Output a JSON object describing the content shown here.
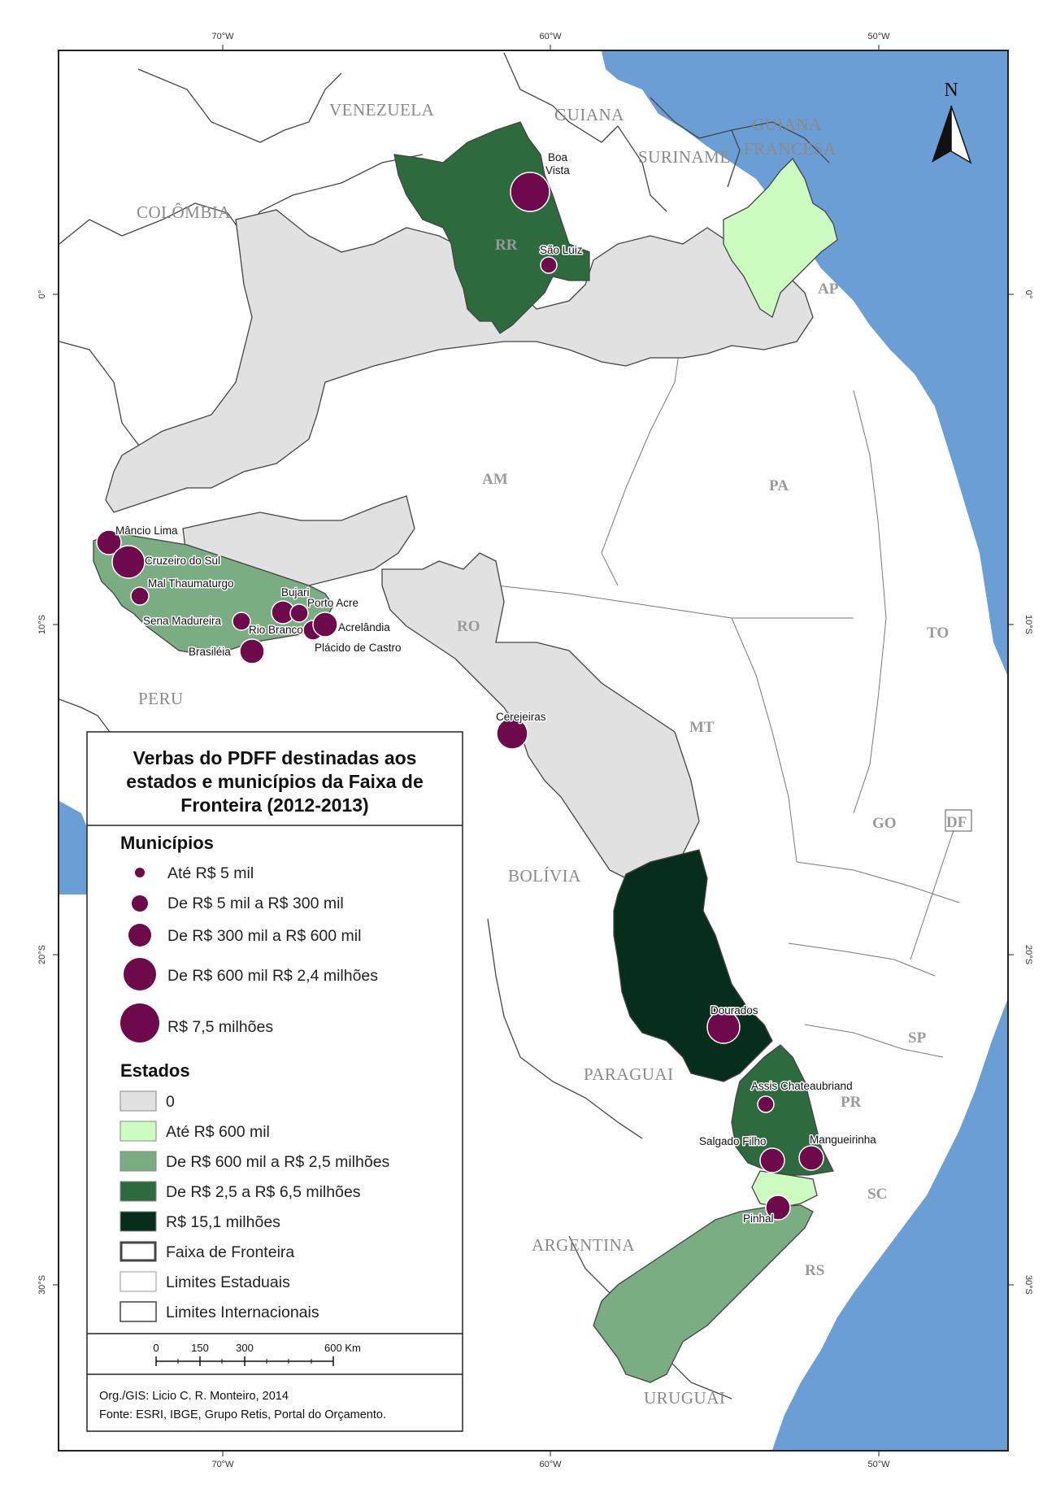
{
  "map": {
    "legend": {
      "title_lines": [
        "Verbas do PDFF destinadas aos",
        "estados e municípios da Faixa de",
        "Fronteira (2012-2013)"
      ],
      "municipios_heading": "Municípios",
      "municipios_items": [
        "Até R$ 5 mil",
        "De R$ 5 mil a R$ 300 mil",
        "De R$ 300 mil a R$ 600 mil",
        "De R$ 600 mil R$ 2,4 milhões",
        "R$ 7,5 milhões"
      ],
      "estados_heading": "Estados",
      "estados_items": [
        "0",
        "Até R$ 600 mil",
        "De R$ 600 mil a R$ 2,5 milhões",
        "De R$ 2,5 a R$ 6,5 milhões",
        "R$ 15,1 milhões",
        "Faixa de Fronteira",
        "Limites Estaduais",
        "Limites Internacionais"
      ],
      "scale_ticks": [
        "0",
        "150",
        "300",
        "600 Km"
      ],
      "credits": [
        "Org./GIS: Licio C. R. Monteiro, 2014",
        "Fonte: ESRI, IBGE, Grupo Retis, Portal do Orçamento."
      ]
    },
    "colors": {
      "ocean": "#6a9ed4",
      "class_zero": "#e1e1e1",
      "class_1": "#ccfcc0",
      "class_2": "#7aad82",
      "class_3": "#2d6a3e",
      "class_4": "#072d1d",
      "circle": "#6e0a4c"
    },
    "north_label": "N",
    "graticule": {
      "top": [
        "70°W",
        "60°W",
        "50°W"
      ],
      "bottom": [
        "70°W",
        "60°W",
        "50°W"
      ],
      "left": [
        "0°",
        "10°S",
        "20°S",
        "30°S"
      ],
      "right": [
        "0°",
        "10°S",
        "20°S",
        "30°S"
      ]
    },
    "countries": [
      "VENEZUELA",
      "GUIANA",
      "SURINAME",
      "GUIANA",
      "FRANCESA",
      "COLÔMBIA",
      "PERU",
      "BOLÍVIA",
      "PARAGUAI",
      "ARGENTINA",
      "URUGUAI"
    ],
    "states": [
      "RR",
      "AP",
      "AM",
      "PA",
      "RO",
      "TO",
      "MT",
      "GO",
      "DF",
      "SP",
      "PR",
      "SC",
      "RS"
    ],
    "cities": [
      "Boa",
      "Vista",
      "São Luiz",
      "Mâncio Lima",
      "Cruzeiro do Sul",
      "Mal Thaumaturgo",
      "Bujari",
      "Porto Acre",
      "Sena Madureira",
      "Rio Branco",
      "Acrelândia",
      "Plácido de Castro",
      "Brasiléia",
      "Cerejeiras",
      "Dourados",
      "Assis Chateaubriand",
      "Salgado Filho",
      "Mangueirinha",
      "Pinhal"
    ]
  }
}
